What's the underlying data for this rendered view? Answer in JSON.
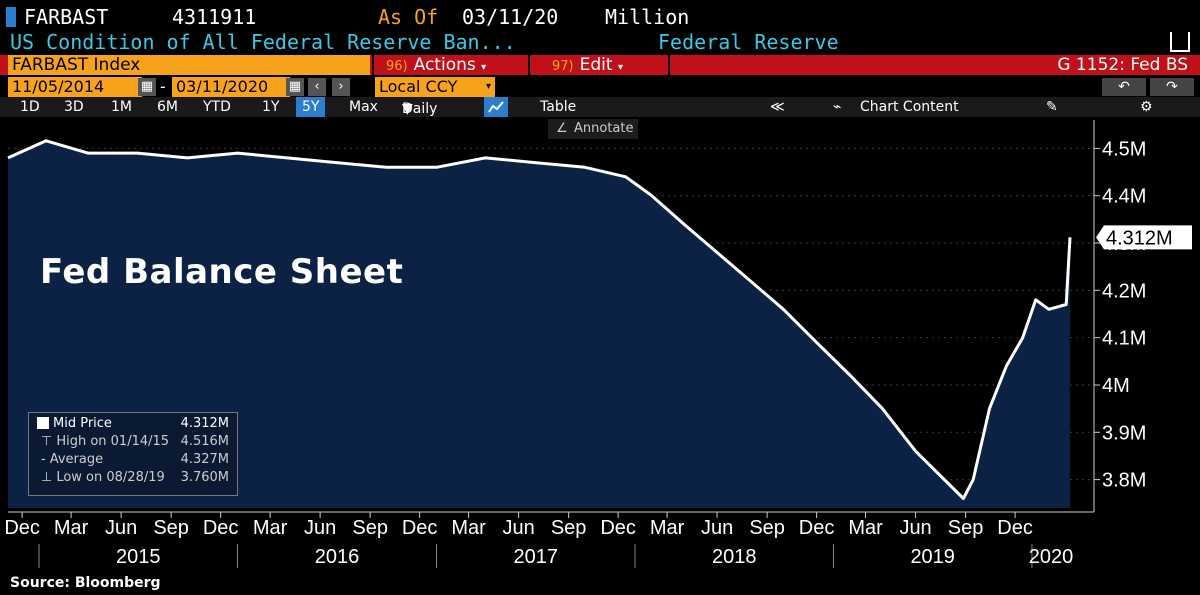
{
  "header": {
    "ticker": "FARBAST",
    "value": "4311911",
    "as_of_label": "As Of",
    "as_of_date": "03/11/20",
    "unit": "Million",
    "description": "US Condition of All Federal Reserve Ban...",
    "source_name": "Federal Reserve"
  },
  "toolbar": {
    "index_label": "FARBAST Index",
    "actions_num": "96)",
    "actions_label": "Actions",
    "edit_num": "97)",
    "edit_label": "Edit",
    "chart_id": "G 1152: Fed BS",
    "date_from": "11/05/2014",
    "date_to": "03/11/2020",
    "date_dash": "-",
    "currency": "Local CCY"
  },
  "range_buttons": [
    "1D",
    "3D",
    "1M",
    "6M",
    "YTD",
    "1Y",
    "5Y",
    "Max"
  ],
  "selected_range": "5Y",
  "period": "Daily",
  "table_label": "Table",
  "chart_content_label": "Chart Content",
  "annotate_label": "Annotate",
  "plot_title": "Fed Balance Sheet",
  "legend": {
    "mid_label": "Mid Price",
    "mid_value": "4.312M",
    "high_label": "High on 01/14/15",
    "high_value": "4.516M",
    "avg_label": "Average",
    "avg_value": "4.327M",
    "low_label": "Low on 08/28/19",
    "low_value": "3.760M"
  },
  "last_value_tag": "4.312M",
  "source": "Source: Bloomberg",
  "colors": {
    "fill": "#0b2244",
    "line": "#ffffff",
    "accent_orange": "#f7a21b",
    "accent_red": "#c0111b",
    "header_cyan": "#39c9e6"
  },
  "chart_data": {
    "type": "area",
    "title": "Fed Balance Sheet",
    "unit": "Million",
    "ylim": [
      3.74,
      4.56
    ],
    "y_ticks": [
      "4.5M",
      "4.4M",
      "4.3M",
      "4.2M",
      "4.1M",
      "4M",
      "3.9M",
      "3.8M"
    ],
    "y_tick_values": [
      4.5,
      4.4,
      4.3,
      4.2,
      4.1,
      4.0,
      3.9,
      3.8
    ],
    "x_month_ticks": [
      "Dec",
      "Mar",
      "Jun",
      "Sep",
      "Dec",
      "Mar",
      "Jun",
      "Sep",
      "Dec",
      "Mar",
      "Jun",
      "Sep",
      "Dec",
      "Mar",
      "Jun",
      "Sep",
      "Dec",
      "Mar",
      "Jun",
      "Sep",
      "Dec"
    ],
    "x_years": [
      "2015",
      "2016",
      "2017",
      "2018",
      "2019",
      "2020"
    ],
    "series": [
      {
        "values": [
          [
            "2014-11-05",
            4.48
          ],
          [
            "2015-01-14",
            4.516
          ],
          [
            "2015-04-01",
            4.49
          ],
          [
            "2015-07-01",
            4.49
          ],
          [
            "2015-10-01",
            4.48
          ],
          [
            "2016-01-01",
            4.49
          ],
          [
            "2016-04-01",
            4.48
          ],
          [
            "2016-07-01",
            4.47
          ],
          [
            "2016-10-01",
            4.46
          ],
          [
            "2017-01-01",
            4.46
          ],
          [
            "2017-04-01",
            4.48
          ],
          [
            "2017-07-01",
            4.47
          ],
          [
            "2017-10-01",
            4.46
          ],
          [
            "2017-12-15",
            4.44
          ],
          [
            "2018-02-01",
            4.4
          ],
          [
            "2018-04-01",
            4.34
          ],
          [
            "2018-06-01",
            4.28
          ],
          [
            "2018-08-01",
            4.22
          ],
          [
            "2018-10-01",
            4.16
          ],
          [
            "2018-12-01",
            4.09
          ],
          [
            "2019-02-01",
            4.02
          ],
          [
            "2019-04-01",
            3.95
          ],
          [
            "2019-06-01",
            3.86
          ],
          [
            "2019-08-28",
            3.76
          ],
          [
            "2019-09-15",
            3.8
          ],
          [
            "2019-10-15",
            3.95
          ],
          [
            "2019-11-15",
            4.04
          ],
          [
            "2019-12-15",
            4.1
          ],
          [
            "2020-01-08",
            4.18
          ],
          [
            "2020-02-01",
            4.16
          ],
          [
            "2020-03-04",
            4.17
          ],
          [
            "2020-03-11",
            4.312
          ]
        ]
      }
    ]
  }
}
